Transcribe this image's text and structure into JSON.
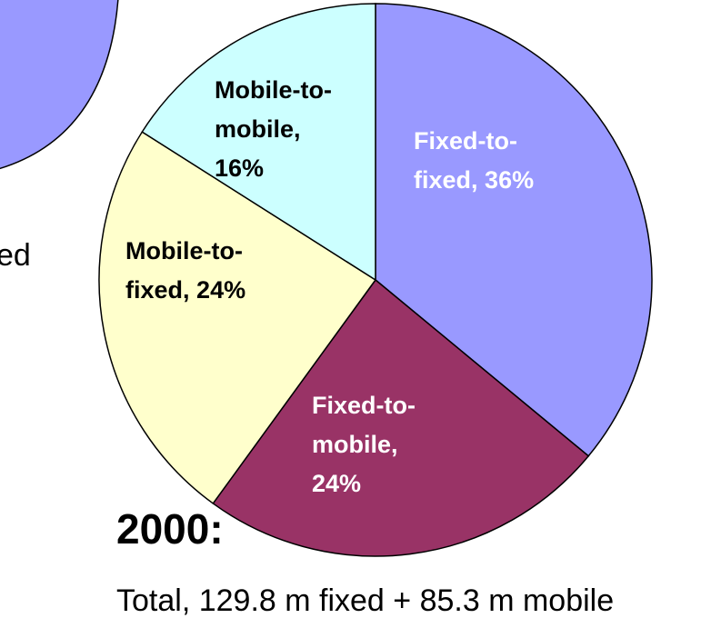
{
  "chart_data": {
    "type": "pie",
    "title": "2000:",
    "subtitle": "Total, 129.8 m fixed + 85.3 m mobile",
    "side_text": "ed",
    "categories": [
      "Fixed-to-fixed",
      "Fixed-to-mobile",
      "Mobile-to-fixed",
      "Mobile-to-mobile"
    ],
    "values": [
      36,
      24,
      24,
      16
    ],
    "value_labels": [
      "36%",
      "24%",
      "24%",
      "16%"
    ],
    "colors": [
      "#9999ff",
      "#993366",
      "#ffffcc",
      "#ccffff"
    ],
    "label_colors": [
      "#ffffff",
      "#ffffff",
      "#000000",
      "#000000"
    ]
  }
}
